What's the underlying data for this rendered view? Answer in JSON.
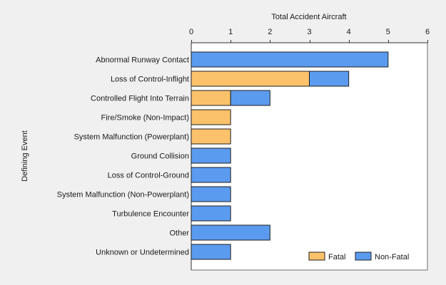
{
  "chart_data": {
    "type": "bar",
    "orientation": "horizontal",
    "stacked": true,
    "xlabel": "Total Accident Aircraft",
    "ylabel": "Defining Event",
    "xlim": [
      0,
      6
    ],
    "xticks": [
      0,
      1,
      2,
      3,
      4,
      5,
      6
    ],
    "x_axis_position": "top",
    "grid": false,
    "legend_position": "bottom-right",
    "categories": [
      "Abnormal Runway Contact",
      "Loss of Control-Inflight",
      "Controlled Flight Into Terrain",
      "Fire/Smoke (Non-Impact)",
      "System Malfunction (Powerplant)",
      "Ground Collision",
      "Loss of Control-Ground",
      "System Malfunction (Non-Powerplant)",
      "Turbulence Encounter",
      "Other",
      "Unknown or Undetermined"
    ],
    "series": [
      {
        "name": "Fatal",
        "color": "#fcc26b",
        "values": [
          0,
          3,
          1,
          1,
          1,
          0,
          0,
          0,
          0,
          0,
          0
        ]
      },
      {
        "name": "Non-Fatal",
        "color": "#5b9bef",
        "values": [
          5,
          1,
          1,
          0,
          0,
          1,
          1,
          1,
          1,
          2,
          1
        ]
      }
    ]
  }
}
